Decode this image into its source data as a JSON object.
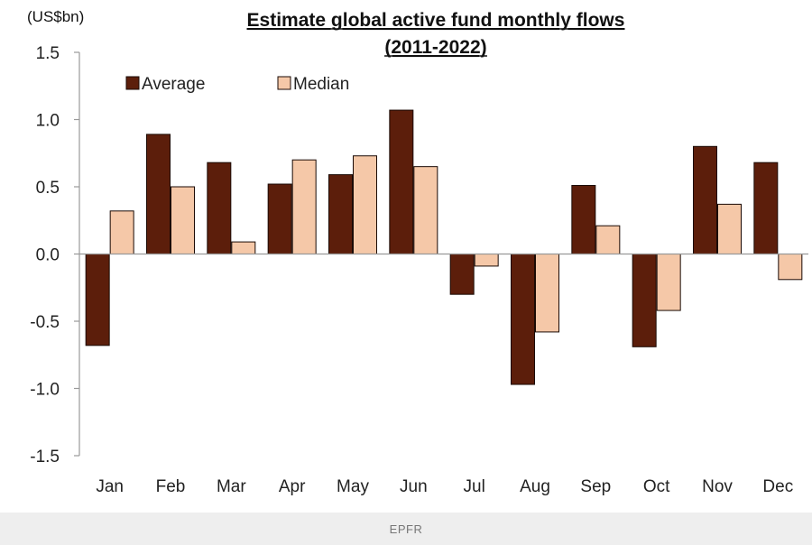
{
  "chart_data": {
    "type": "bar",
    "title_lines": [
      "Estimate global active fund monthly flows",
      "(2011-2022)"
    ],
    "unit_label": "(US$bn)",
    "xlabel": "",
    "ylabel": "",
    "ylim": [
      -1.5,
      1.5
    ],
    "yticks": [
      1.5,
      1.0,
      0.5,
      0.0,
      -0.5,
      -1.0,
      -1.5
    ],
    "ytick_labels": [
      "1.5",
      "1.0",
      "0.5",
      "0.0",
      "-0.5",
      "-1.0",
      "-1.5"
    ],
    "grid": false,
    "legend_position": "top-left",
    "categories": [
      "Jan",
      "Feb",
      "Mar",
      "Apr",
      "May",
      "Jun",
      "Jul",
      "Aug",
      "Sep",
      "Oct",
      "Nov",
      "Dec"
    ],
    "series": [
      {
        "name": "Average",
        "color": "#5c1e0b",
        "values": [
          -0.68,
          0.89,
          0.68,
          0.52,
          0.59,
          1.07,
          -0.3,
          -0.97,
          0.51,
          -0.69,
          0.8,
          0.68
        ]
      },
      {
        "name": "Median",
        "color": "#f5c8a8",
        "values": [
          0.32,
          0.5,
          0.09,
          0.7,
          0.73,
          0.65,
          -0.09,
          -0.58,
          0.21,
          -0.42,
          0.37,
          -0.19
        ]
      }
    ]
  },
  "footer": {
    "source": "EPFR"
  }
}
